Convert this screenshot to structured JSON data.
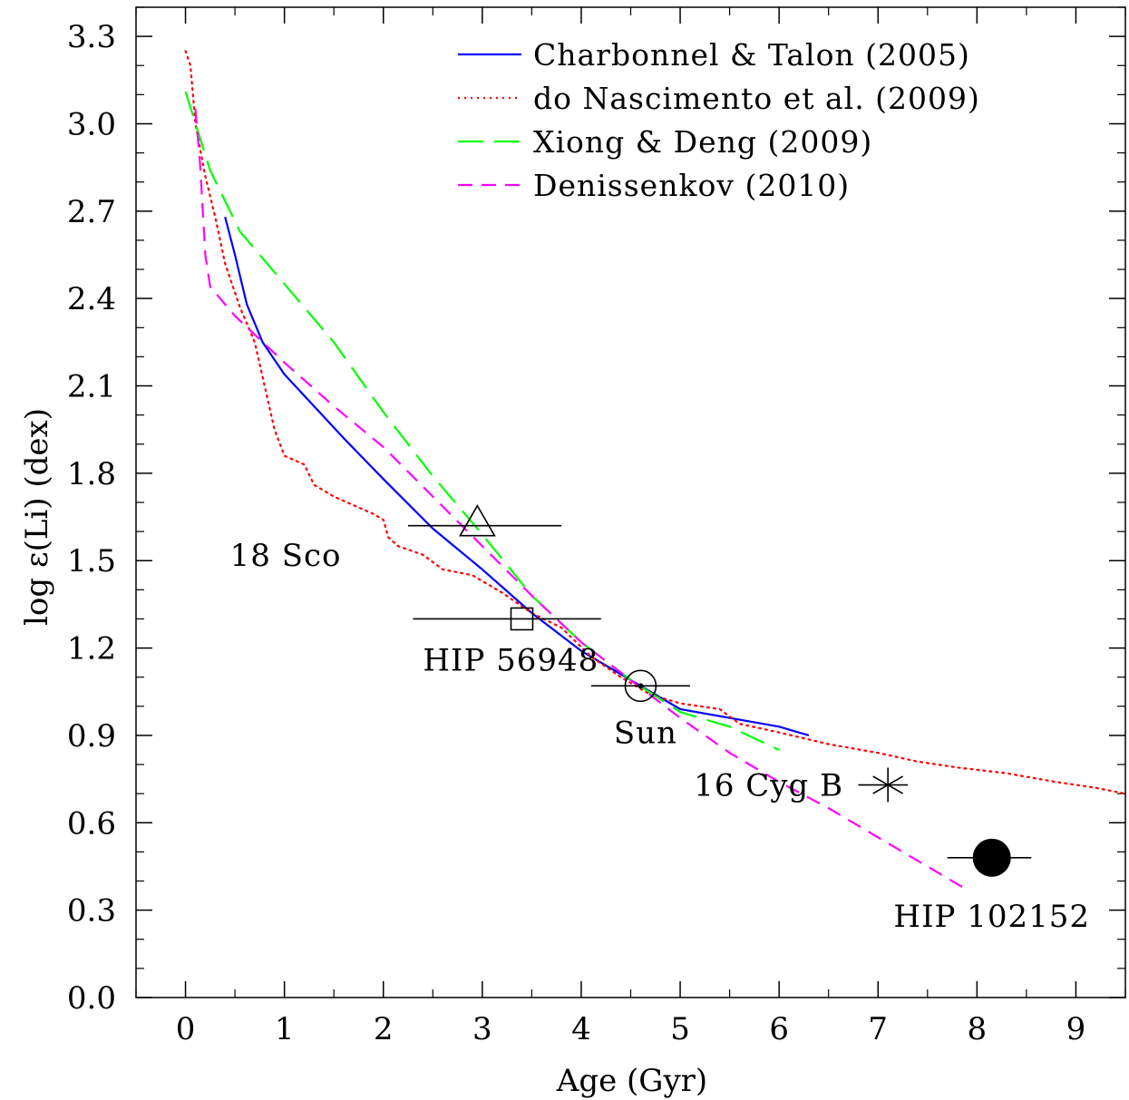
{
  "chart_data": {
    "type": "line",
    "xlabel": "Age (Gyr)",
    "ylabel": "log ε(Li) (dex)",
    "xlim": [
      -0.5,
      9.5
    ],
    "ylim": [
      0.0,
      3.4
    ],
    "xticks": [
      0,
      1,
      2,
      3,
      4,
      5,
      6,
      7,
      8,
      9
    ],
    "yticks": [
      0.0,
      0.3,
      0.6,
      0.9,
      1.2,
      1.5,
      1.8,
      2.1,
      2.4,
      2.7,
      3.0,
      3.3
    ],
    "xtick_labels": [
      "0",
      "1",
      "2",
      "3",
      "4",
      "5",
      "6",
      "7",
      "8",
      "9"
    ],
    "ytick_labels": [
      "0.0",
      "0.3",
      "0.6",
      "0.9",
      "1.2",
      "1.5",
      "1.8",
      "2.1",
      "2.4",
      "2.7",
      "3.0",
      "3.3"
    ],
    "legend_position": "top-right",
    "series": [
      {
        "name": "Charbonnel & Talon (2005)",
        "color": "#0000ff",
        "style": "solid",
        "points": [
          [
            0.4,
            2.68
          ],
          [
            0.5,
            2.55
          ],
          [
            0.62,
            2.38
          ],
          [
            0.78,
            2.25
          ],
          [
            1.0,
            2.14
          ],
          [
            1.6,
            1.92
          ],
          [
            2.0,
            1.78
          ],
          [
            2.5,
            1.61
          ],
          [
            3.0,
            1.47
          ],
          [
            3.5,
            1.32
          ],
          [
            4.0,
            1.19
          ],
          [
            4.6,
            1.07
          ],
          [
            5.0,
            0.99
          ],
          [
            6.0,
            0.93
          ],
          [
            6.3,
            0.9
          ]
        ]
      },
      {
        "name": "do Nascimento et al. (2009)",
        "color": "#ff0000",
        "style": "dotted",
        "points": [
          [
            0.0,
            3.25
          ],
          [
            0.05,
            3.2
          ],
          [
            0.1,
            3.0
          ],
          [
            0.2,
            2.82
          ],
          [
            0.3,
            2.68
          ],
          [
            0.4,
            2.52
          ],
          [
            0.55,
            2.37
          ],
          [
            0.7,
            2.25
          ],
          [
            0.8,
            2.1
          ],
          [
            0.9,
            1.95
          ],
          [
            1.0,
            1.86
          ],
          [
            1.2,
            1.83
          ],
          [
            1.3,
            1.76
          ],
          [
            1.5,
            1.72
          ],
          [
            1.7,
            1.69
          ],
          [
            1.9,
            1.66
          ],
          [
            2.0,
            1.64
          ],
          [
            2.05,
            1.58
          ],
          [
            2.15,
            1.55
          ],
          [
            2.4,
            1.52
          ],
          [
            2.6,
            1.47
          ],
          [
            2.9,
            1.45
          ],
          [
            3.2,
            1.39
          ],
          [
            3.5,
            1.32
          ],
          [
            3.8,
            1.27
          ],
          [
            4.1,
            1.17
          ],
          [
            4.4,
            1.1
          ],
          [
            4.7,
            1.04
          ],
          [
            5.0,
            1.01
          ],
          [
            5.4,
            0.99
          ],
          [
            5.6,
            0.94
          ],
          [
            6.0,
            0.91
          ],
          [
            6.5,
            0.87
          ],
          [
            7.0,
            0.84
          ],
          [
            7.4,
            0.81
          ],
          [
            7.8,
            0.79
          ],
          [
            8.3,
            0.77
          ],
          [
            8.8,
            0.74
          ],
          [
            9.2,
            0.72
          ],
          [
            9.5,
            0.7
          ]
        ]
      },
      {
        "name": "Xiong & Deng (2009)",
        "color": "#00ff00",
        "style": "long-dash",
        "points": [
          [
            0.0,
            3.11
          ],
          [
            0.25,
            2.84
          ],
          [
            0.55,
            2.63
          ],
          [
            1.0,
            2.45
          ],
          [
            1.5,
            2.25
          ],
          [
            2.0,
            2.01
          ],
          [
            2.5,
            1.79
          ],
          [
            3.0,
            1.59
          ],
          [
            3.5,
            1.38
          ],
          [
            4.0,
            1.22
          ],
          [
            4.5,
            1.09
          ],
          [
            5.0,
            0.98
          ],
          [
            5.5,
            0.93
          ],
          [
            6.0,
            0.85
          ]
        ]
      },
      {
        "name": "Denissenkov (2010)",
        "color": "#ff00ff",
        "style": "dashed",
        "points": [
          [
            0.1,
            3.05
          ],
          [
            0.15,
            2.85
          ],
          [
            0.2,
            2.55
          ],
          [
            0.25,
            2.44
          ],
          [
            0.5,
            2.34
          ],
          [
            1.0,
            2.18
          ],
          [
            1.5,
            2.03
          ],
          [
            2.0,
            1.89
          ],
          [
            2.5,
            1.72
          ],
          [
            3.0,
            1.55
          ],
          [
            3.5,
            1.38
          ],
          [
            4.0,
            1.22
          ],
          [
            4.5,
            1.09
          ],
          [
            5.0,
            0.96
          ],
          [
            5.5,
            0.84
          ],
          [
            6.0,
            0.74
          ],
          [
            6.5,
            0.65
          ],
          [
            7.0,
            0.55
          ],
          [
            7.5,
            0.45
          ],
          [
            7.9,
            0.37
          ]
        ]
      }
    ],
    "stars": [
      {
        "name": "18 Sco",
        "age": 2.95,
        "age_lo": 2.25,
        "age_hi": 3.8,
        "li": 1.62,
        "marker": "triangle"
      },
      {
        "name": "HIP 56948",
        "age": 3.4,
        "age_lo": 2.3,
        "age_hi": 4.2,
        "li": 1.3,
        "marker": "square"
      },
      {
        "name": "Sun",
        "age": 4.6,
        "age_lo": 4.1,
        "age_hi": 5.1,
        "li": 1.07,
        "marker": "sun"
      },
      {
        "name": "16 Cyg B",
        "age": 7.1,
        "age_lo": 6.8,
        "age_hi": 7.3,
        "li": 0.73,
        "marker": "asterisk"
      },
      {
        "name": "HIP 102152",
        "age": 8.15,
        "age_lo": 7.7,
        "age_hi": 8.55,
        "li": 0.48,
        "marker": "filled-circle"
      }
    ]
  }
}
